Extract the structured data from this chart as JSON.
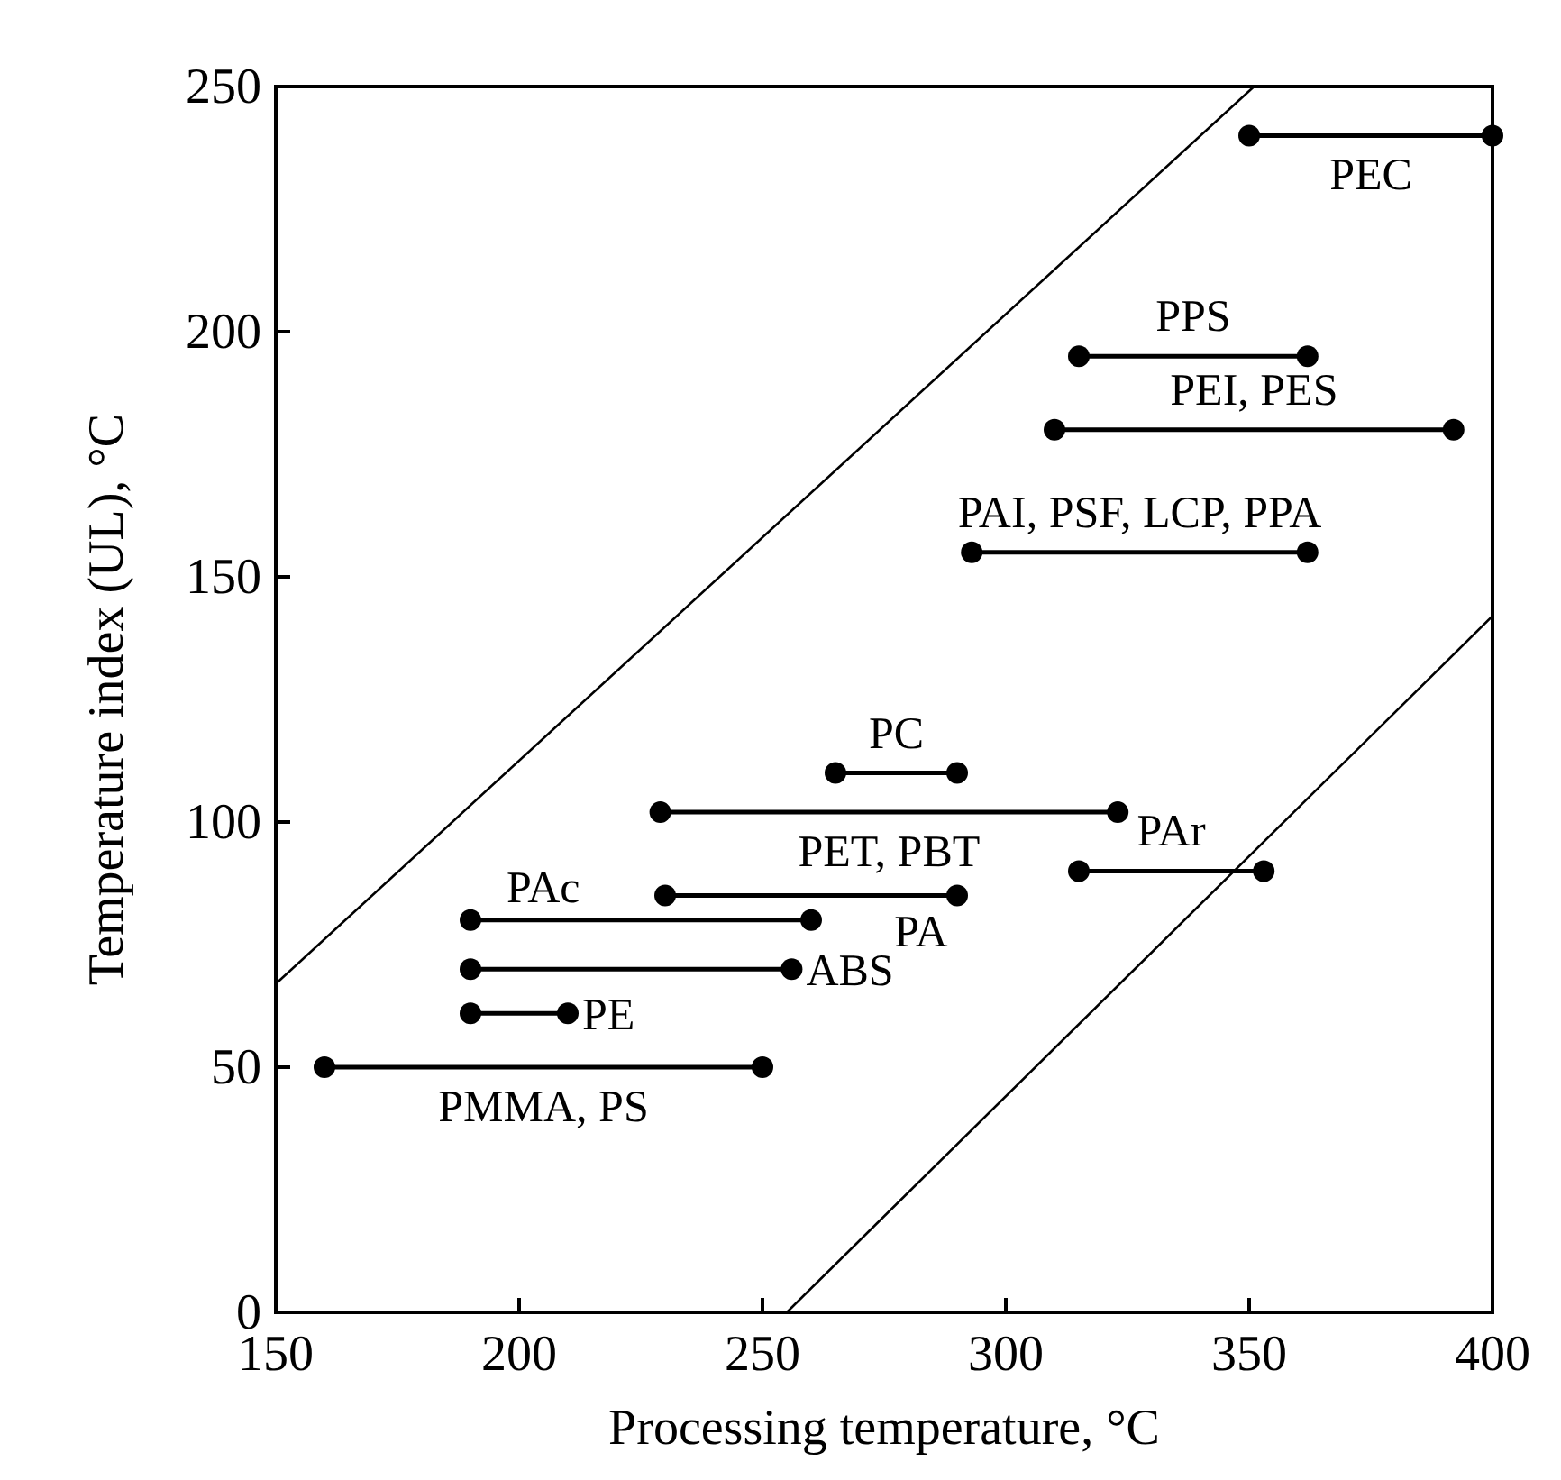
{
  "chart_data": {
    "type": "line",
    "xlabel": "Processing temperature, °C",
    "ylabel": "Temperature index (UL), °C",
    "xlim": [
      150,
      400
    ],
    "ylim": [
      0,
      250
    ],
    "xticks": [
      150,
      200,
      250,
      300,
      350,
      400
    ],
    "yticks": [
      0,
      50,
      100,
      150,
      200,
      250
    ],
    "marker": "circle",
    "series": [
      {
        "name": "PEC",
        "color": "#000000",
        "x": [
          350,
          400
        ],
        "values": [
          240,
          240
        ]
      },
      {
        "name": "PPS",
        "color": "#000000",
        "x": [
          315,
          362
        ],
        "values": [
          195,
          195
        ]
      },
      {
        "name": "PEI, PES",
        "color": "#000000",
        "x": [
          310,
          392
        ],
        "values": [
          180,
          180
        ]
      },
      {
        "name": "PAI, PSF, LCP, PPA",
        "color": "#000000",
        "x": [
          293,
          362
        ],
        "values": [
          155,
          155
        ]
      },
      {
        "name": "PC",
        "color": "#000000",
        "x": [
          265,
          290
        ],
        "values": [
          110,
          110
        ]
      },
      {
        "name": "PET, PBT",
        "color": "#000000",
        "x": [
          229,
          323
        ],
        "values": [
          102,
          102
        ]
      },
      {
        "name": "PAr",
        "color": "#000000",
        "x": [
          315,
          353
        ],
        "values": [
          90,
          90
        ]
      },
      {
        "name": "PA",
        "color": "#000000",
        "x": [
          230,
          290
        ],
        "values": [
          85,
          85
        ]
      },
      {
        "name": "PAc",
        "color": "#000000",
        "x": [
          190,
          260
        ],
        "values": [
          80,
          80
        ]
      },
      {
        "name": "ABS",
        "color": "#000000",
        "x": [
          190,
          256
        ],
        "values": [
          70,
          70
        ]
      },
      {
        "name": "PE",
        "color": "#000000",
        "x": [
          190,
          210
        ],
        "values": [
          61,
          61
        ]
      },
      {
        "name": "PMMA, PS",
        "color": "#000000",
        "x": [
          160,
          250
        ],
        "values": [
          50,
          50
        ]
      },
      {
        "color": "#000000",
        "x": [
          150,
          351
        ],
        "values": [
          67,
          250
        ],
        "marker": "none"
      },
      {
        "color": "#000000",
        "x": [
          255,
          400
        ],
        "values": [
          0,
          142
        ],
        "marker": "none"
      }
    ]
  }
}
